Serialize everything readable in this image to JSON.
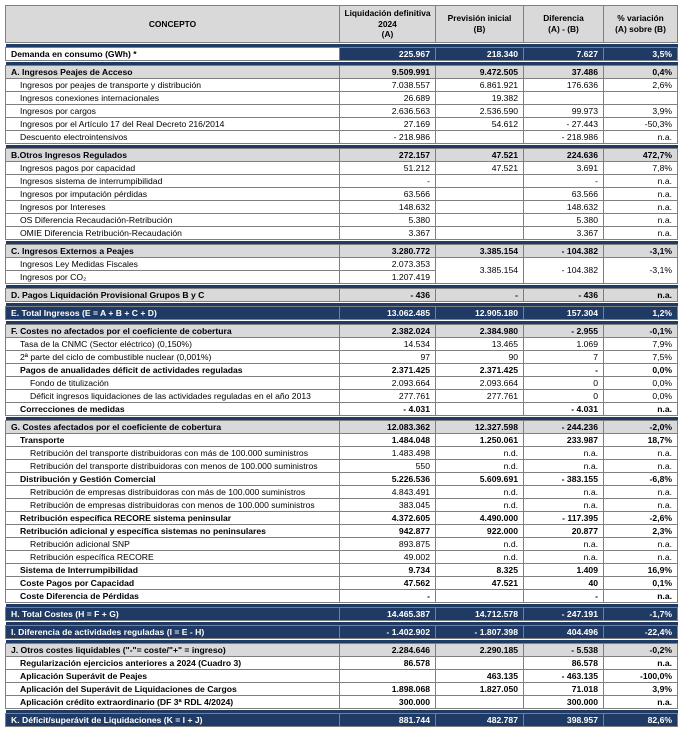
{
  "table": {
    "colors": {
      "navy": "#1f3a64",
      "header_gray": "#d9d9d9",
      "border_gray": "#7f7f7f"
    },
    "columns": [
      "CONCEPTO",
      "Liquidación definitiva\n2024\n(A)",
      "Previsión inicial\n(B)",
      "Diferencia\n(A) - (B)",
      "% variación\n(A) sobre (B)"
    ],
    "sections": [
      {
        "rows": [
          {
            "label": "Demanda en consumo (GWh) *",
            "style": "demand",
            "indent": 0,
            "values": [
              "225.967",
              "218.340",
              "7.627",
              "3,5%"
            ]
          }
        ]
      },
      {
        "rows": [
          {
            "label": "A. Ingresos Peajes de Acceso",
            "style": "section",
            "indent": 0,
            "values": [
              "9.509.991",
              "9.472.505",
              "37.486",
              "0,4%"
            ]
          },
          {
            "label": "Ingresos por peajes de transporte y distribución",
            "style": "item",
            "indent": 1,
            "values": [
              "7.038.557",
              "6.861.921",
              "176.636",
              "2,6%"
            ]
          },
          {
            "label": "Ingresos conexiones internacionales",
            "style": "item",
            "indent": 1,
            "values": [
              "26.689",
              "19.382",
              "",
              ""
            ]
          },
          {
            "label": "Ingresos por cargos",
            "style": "item",
            "indent": 1,
            "values": [
              "2.636.563",
              "2.536.590",
              "99.973",
              "3,9%"
            ]
          },
          {
            "label": "Ingresos por el Artículo 17 del Real Decreto 216/2014",
            "style": "item",
            "indent": 1,
            "values": [
              "27.169",
              "54.612",
              "- 27.443",
              "-50,3%"
            ]
          },
          {
            "label": "Descuento electrointensivos",
            "style": "item",
            "indent": 1,
            "values": [
              "- 218.986",
              "",
              "- 218.986",
              "n.a."
            ]
          }
        ]
      },
      {
        "rows": [
          {
            "label": "B.Otros Ingresos Regulados",
            "style": "section",
            "indent": 0,
            "values": [
              "272.157",
              "47.521",
              "224.636",
              "472,7%"
            ]
          },
          {
            "label": "Ingresos pagos por capacidad",
            "style": "item",
            "indent": 1,
            "values": [
              "51.212",
              "47.521",
              "3.691",
              "7,8%"
            ]
          },
          {
            "label": "Ingresos sistema de interrumpibilidad",
            "style": "item",
            "indent": 1,
            "values": [
              "-",
              "",
              "-",
              "n.a."
            ]
          },
          {
            "label": "Ingresos por imputación pérdidas",
            "style": "item",
            "indent": 1,
            "values": [
              "63.566",
              "",
              "63.566",
              "n.a."
            ]
          },
          {
            "label": "Ingresos por Intereses",
            "style": "item",
            "indent": 1,
            "values": [
              "148.632",
              "",
              "148.632",
              "n.a."
            ]
          },
          {
            "label": "OS Diferencia Recaudación-Retribución",
            "style": "item",
            "indent": 1,
            "values": [
              "5.380",
              "",
              "5.380",
              "n.a."
            ]
          },
          {
            "label": "OMIE Diferencia Retribución-Recaudación",
            "style": "item",
            "indent": 1,
            "values": [
              "3.367",
              "",
              "3.367",
              "n.a."
            ]
          }
        ]
      },
      {
        "rows": [
          {
            "label": "C. Ingresos Externos a Peajes",
            "style": "section",
            "indent": 0,
            "values": [
              "3.280.772",
              "3.385.154",
              "- 104.382",
              "-3,1%"
            ]
          },
          {
            "label": "Ingresos Ley Medidas Fiscales",
            "style": "item",
            "indent": 1,
            "merge": "start",
            "values": [
              "2.073.353",
              "3.385.154",
              "- 104.382",
              "-3,1%"
            ]
          },
          {
            "label": "Ingresos por CO₂",
            "style": "item",
            "indent": 1,
            "merge": "end",
            "values": [
              "1.207.419"
            ]
          }
        ]
      },
      {
        "rows": [
          {
            "label": "D. Pagos Liquidación Provisional Grupos B y C",
            "style": "section",
            "indent": 0,
            "values": [
              "- 436",
              "-",
              "- 436",
              "n.a."
            ]
          }
        ]
      },
      {
        "rows": [
          {
            "label": "E. Total Ingresos (E = A + B + C + D)",
            "style": "total",
            "indent": 0,
            "values": [
              "13.062.485",
              "12.905.180",
              "157.304",
              "1,2%"
            ]
          }
        ]
      },
      {
        "rows": [
          {
            "label": "F. Costes no afectados por el coeficiente de cobertura",
            "style": "section",
            "indent": 0,
            "values": [
              "2.382.024",
              "2.384.980",
              "- 2.955",
              "-0,1%"
            ]
          },
          {
            "label": "Tasa de la CNMC (Sector eléctrico) (0,150%)",
            "style": "item",
            "indent": 1,
            "values": [
              "14.534",
              "13.465",
              "1.069",
              "7,9%"
            ]
          },
          {
            "label": "2ª parte del ciclo de combustible nuclear (0,001%)",
            "style": "item",
            "indent": 1,
            "values": [
              "97",
              "90",
              "7",
              "7,5%"
            ]
          },
          {
            "label": "Pagos de anualidades déficit de actividades reguladas",
            "style": "bold",
            "indent": 1,
            "values": [
              "2.371.425",
              "2.371.425",
              "-",
              "0,0%"
            ]
          },
          {
            "label": "Fondo de titulización",
            "style": "item",
            "indent": 2,
            "values": [
              "2.093.664",
              "2.093.664",
              "0",
              "0,0%"
            ]
          },
          {
            "label": "Déficit ingresos liquidaciones de las actividades reguladas en el año 2013",
            "style": "item",
            "indent": 2,
            "values": [
              "277.761",
              "277.761",
              "0",
              "0,0%"
            ]
          },
          {
            "label": "Correcciones de medidas",
            "style": "bold",
            "indent": 1,
            "values": [
              "- 4.031",
              "",
              "- 4.031",
              "n.a."
            ]
          }
        ]
      },
      {
        "rows": [
          {
            "label": "G. Costes afectados por el coeficiente de cobertura",
            "style": "section",
            "indent": 0,
            "values": [
              "12.083.362",
              "12.327.598",
              "- 244.236",
              "-2,0%"
            ]
          },
          {
            "label": "Transporte",
            "style": "bold",
            "indent": 1,
            "values": [
              "1.484.048",
              "1.250.061",
              "233.987",
              "18,7%"
            ]
          },
          {
            "label": "Retribución del transporte distribuidoras con más de 100.000 suministros",
            "style": "item",
            "indent": 2,
            "values": [
              "1.483.498",
              "n.d.",
              "n.a.",
              "n.a."
            ]
          },
          {
            "label": "Retribución del transporte distribuidoras con menos de 100.000 suministros",
            "style": "item",
            "indent": 2,
            "values": [
              "550",
              "n.d.",
              "n.a.",
              "n.a."
            ]
          },
          {
            "label": "Distribución y Gestión Comercial",
            "style": "bold",
            "indent": 1,
            "values": [
              "5.226.536",
              "5.609.691",
              "- 383.155",
              "-6,8%"
            ]
          },
          {
            "label": "Retribución de empresas distribuidoras con más de 100.000 suministros",
            "style": "item",
            "indent": 2,
            "values": [
              "4.843.491",
              "n.d.",
              "n.a.",
              "n.a."
            ]
          },
          {
            "label": "Retribución de empresas distribuidoras con menos de 100.000 suministros",
            "style": "item",
            "indent": 2,
            "values": [
              "383.045",
              "n.d.",
              "n.a.",
              "n.a."
            ]
          },
          {
            "label": "Retribución específica RECORE sistema peninsular",
            "style": "bold",
            "indent": 1,
            "values": [
              "4.372.605",
              "4.490.000",
              "- 117.395",
              "-2,6%"
            ]
          },
          {
            "label": "Retribución adicional y específica sistemas no peninsulares",
            "style": "bold",
            "indent": 1,
            "values": [
              "942.877",
              "922.000",
              "20.877",
              "2,3%"
            ]
          },
          {
            "label": "Retribución adicional SNP",
            "style": "item",
            "indent": 2,
            "values": [
              "893.875",
              "n.d.",
              "n.a.",
              "n.a."
            ]
          },
          {
            "label": "Retribución específica RECORE",
            "style": "item",
            "indent": 2,
            "values": [
              "49.002",
              "n.d.",
              "n.a.",
              "n.a."
            ]
          },
          {
            "label": "Sistema de Interrumpibilidad",
            "style": "bold",
            "indent": 1,
            "values": [
              "9.734",
              "8.325",
              "1.409",
              "16,9%"
            ]
          },
          {
            "label": "Coste Pagos por Capacidad",
            "style": "bold",
            "indent": 1,
            "values": [
              "47.562",
              "47.521",
              "40",
              "0,1%"
            ]
          },
          {
            "label": "Coste Diferencia de Pérdidas",
            "style": "bold",
            "indent": 1,
            "values": [
              "-",
              "",
              "-",
              "n.a."
            ]
          }
        ]
      },
      {
        "rows": [
          {
            "label": "H. Total Costes (H = F + G)",
            "style": "total",
            "indent": 0,
            "values": [
              "14.465.387",
              "14.712.578",
              "- 247.191",
              "-1,7%"
            ]
          }
        ]
      },
      {
        "rows": [
          {
            "label": "I. Diferencia de actividades reguladas (I = E - H)",
            "style": "total",
            "indent": 0,
            "values": [
              "- 1.402.902",
              "- 1.807.398",
              "404.496",
              "-22,4%"
            ]
          }
        ]
      },
      {
        "rows": [
          {
            "label": "J. Otros costes liquidables (\"-\"= coste/\"+\" = ingreso)",
            "style": "section",
            "indent": 0,
            "values": [
              "2.284.646",
              "2.290.185",
              "- 5.538",
              "-0,2%"
            ]
          },
          {
            "label": "Regularización ejercicios anteriores a 2024 (Cuadro 3)",
            "style": "bold",
            "indent": 1,
            "values": [
              "86.578",
              "",
              "86.578",
              "n.a."
            ]
          },
          {
            "label": "Aplicación Superávit de Peajes",
            "style": "bold",
            "indent": 1,
            "values": [
              "",
              "463.135",
              "- 463.135",
              "-100,0%"
            ]
          },
          {
            "label": "Aplicación del Superávit de Liquidaciones de Cargos",
            "style": "bold",
            "indent": 1,
            "values": [
              "1.898.068",
              "1.827.050",
              "71.018",
              "3,9%"
            ]
          },
          {
            "label": "Aplicación crédito extraordinario (DF 3ª RDL 4/2024)",
            "style": "bold",
            "indent": 1,
            "values": [
              "300.000",
              "",
              "300.000",
              "n.a."
            ]
          }
        ]
      },
      {
        "rows": [
          {
            "label": "K. Déficit/superávit de Liquidaciones  (K = I + J)",
            "style": "total",
            "indent": 0,
            "values": [
              "881.744",
              "482.787",
              "398.957",
              "82,6%"
            ]
          }
        ]
      }
    ]
  }
}
